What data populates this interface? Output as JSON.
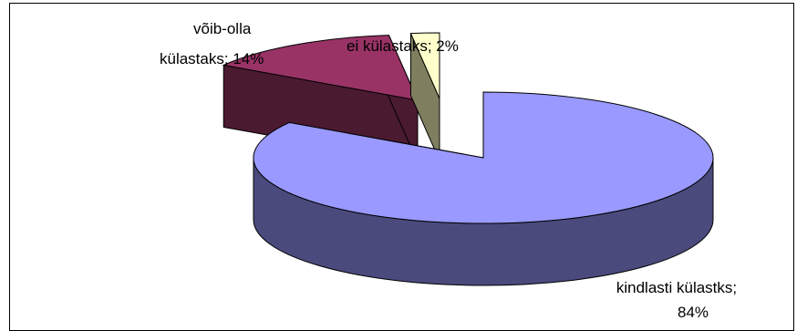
{
  "chart_data": {
    "type": "pie",
    "style": "3d-exploded",
    "title": "",
    "slices": [
      {
        "label_line1": "kindlasti külastks;",
        "label_line2": "84%",
        "value": 84,
        "top_color": "#9999ff",
        "side_color": "#4b4a7d"
      },
      {
        "label_line1": "võib-olla",
        "label_line2": "külastaks; 14%",
        "value": 14,
        "top_color": "#993366",
        "side_color": "#4a1a31"
      },
      {
        "label_line1": "ei külastaks; 2%",
        "label_line2": "",
        "value": 2,
        "top_color": "#ffffcc",
        "side_color": "#7f7f5f",
        "side_color_2": "#8a8a6a"
      }
    ]
  }
}
